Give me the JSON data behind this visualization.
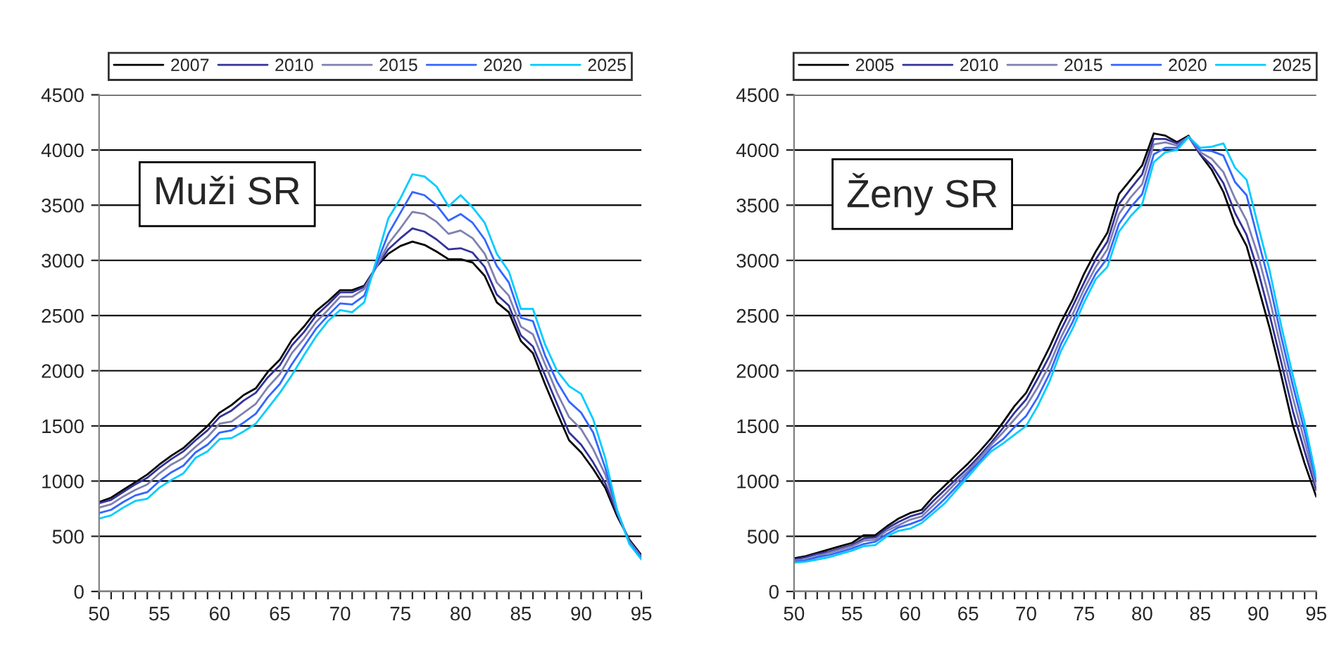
{
  "chart_data": [
    {
      "type": "line",
      "annotations": [
        "Muži SR"
      ],
      "x": [
        50,
        51,
        52,
        53,
        54,
        55,
        56,
        57,
        58,
        59,
        60,
        61,
        62,
        63,
        64,
        65,
        66,
        67,
        68,
        69,
        70,
        71,
        72,
        73,
        74,
        75,
        76,
        77,
        78,
        79,
        80,
        81,
        82,
        83,
        84,
        85,
        86,
        87,
        88,
        89,
        90,
        91,
        92,
        93,
        94,
        95
      ],
      "series": [
        {
          "name": "2007",
          "color": "#000000",
          "values": [
            810,
            850,
            920,
            990,
            1060,
            1150,
            1230,
            1300,
            1400,
            1500,
            1620,
            1690,
            1780,
            1840,
            1990,
            2100,
            2280,
            2400,
            2540,
            2630,
            2730,
            2730,
            2770,
            2940,
            3060,
            3130,
            3170,
            3140,
            3080,
            3010,
            3010,
            2980,
            2860,
            2620,
            2530,
            2270,
            2160,
            1880,
            1620,
            1370,
            1260,
            1110,
            940,
            680,
            470,
            330
          ]
        },
        {
          "name": "2010",
          "color": "#333399",
          "values": [
            800,
            830,
            900,
            970,
            1030,
            1120,
            1200,
            1270,
            1370,
            1460,
            1580,
            1640,
            1730,
            1800,
            1940,
            2050,
            2230,
            2350,
            2500,
            2600,
            2710,
            2710,
            2760,
            2940,
            3100,
            3200,
            3290,
            3260,
            3190,
            3100,
            3110,
            3070,
            2940,
            2690,
            2590,
            2320,
            2220,
            1960,
            1700,
            1440,
            1330,
            1170,
            980,
            700,
            460,
            320
          ]
        },
        {
          "name": "2015",
          "color": "#8080b0",
          "values": [
            760,
            790,
            860,
            920,
            970,
            1070,
            1150,
            1210,
            1310,
            1400,
            1520,
            1540,
            1620,
            1700,
            1850,
            1970,
            2160,
            2290,
            2440,
            2550,
            2670,
            2670,
            2740,
            2940,
            3150,
            3290,
            3440,
            3420,
            3350,
            3240,
            3270,
            3200,
            3060,
            2800,
            2680,
            2400,
            2330,
            2060,
            1800,
            1580,
            1470,
            1290,
            1060,
            720,
            450,
            310
          ]
        },
        {
          "name": "2020",
          "color": "#3366ff",
          "values": [
            710,
            740,
            810,
            870,
            900,
            1000,
            1080,
            1140,
            1260,
            1330,
            1440,
            1460,
            1530,
            1610,
            1760,
            1880,
            2060,
            2220,
            2380,
            2500,
            2610,
            2600,
            2680,
            2960,
            3240,
            3430,
            3620,
            3590,
            3500,
            3360,
            3420,
            3340,
            3190,
            2950,
            2800,
            2480,
            2450,
            2140,
            1900,
            1720,
            1620,
            1440,
            1120,
            730,
            440,
            300
          ]
        },
        {
          "name": "2025",
          "color": "#00ccff",
          "values": [
            660,
            690,
            760,
            820,
            840,
            940,
            1010,
            1070,
            1210,
            1270,
            1380,
            1390,
            1450,
            1520,
            1660,
            1800,
            1960,
            2140,
            2310,
            2450,
            2550,
            2530,
            2620,
            3000,
            3380,
            3560,
            3780,
            3760,
            3670,
            3490,
            3590,
            3480,
            3340,
            3060,
            2900,
            2560,
            2560,
            2240,
            2000,
            1860,
            1790,
            1560,
            1210,
            730,
            430,
            290
          ]
        }
      ],
      "xlim": [
        50,
        95
      ],
      "ylim": [
        0,
        4500
      ],
      "xticks": [
        50,
        {
          "value": 51,
          "label": null
        },
        {
          "value": 52,
          "label": null
        },
        {
          "value": 53,
          "label": null
        },
        {
          "value": 54,
          "label": null
        },
        55,
        {
          "value": 56,
          "label": null
        },
        {
          "value": 57,
          "label": null
        },
        {
          "value": 58,
          "label": null
        },
        {
          "value": 59,
          "label": null
        },
        60,
        {
          "value": 61,
          "label": null
        },
        {
          "value": 62,
          "label": null
        },
        {
          "value": 63,
          "label": null
        },
        {
          "value": 64,
          "label": null
        },
        65,
        {
          "value": 66,
          "label": null
        },
        {
          "value": 67,
          "label": null
        },
        {
          "value": 68,
          "label": null
        },
        {
          "value": 69,
          "label": null
        },
        70,
        {
          "value": 71,
          "label": null
        },
        {
          "value": 72,
          "label": null
        },
        {
          "value": 73,
          "label": null
        },
        {
          "value": 74,
          "label": null
        },
        75,
        {
          "value": 76,
          "label": null
        },
        {
          "value": 77,
          "label": null
        },
        {
          "value": 78,
          "label": null
        },
        {
          "value": 79,
          "label": null
        },
        80,
        {
          "value": 81,
          "label": null
        },
        {
          "value": 82,
          "label": null
        },
        {
          "value": 83,
          "label": null
        },
        {
          "value": 84,
          "label": null
        },
        85,
        {
          "value": 86,
          "label": null
        },
        {
          "value": 87,
          "label": null
        },
        {
          "value": 88,
          "label": null
        },
        {
          "value": 89,
          "label": null
        },
        90,
        {
          "value": 91,
          "label": null
        },
        {
          "value": 92,
          "label": null
        },
        {
          "value": 93,
          "label": null
        },
        {
          "value": 94,
          "label": null
        },
        95
      ],
      "yticks": [
        0,
        500,
        1000,
        1500,
        2000,
        2500,
        3000,
        3500,
        4000,
        4500
      ],
      "grid": "y",
      "legend": "top",
      "marker": "none",
      "line_style": "solid"
    },
    {
      "type": "line",
      "annotations": [
        "Ženy SR"
      ],
      "x": [
        50,
        51,
        52,
        53,
        54,
        55,
        56,
        57,
        58,
        59,
        60,
        61,
        62,
        63,
        64,
        65,
        66,
        67,
        68,
        69,
        70,
        71,
        72,
        73,
        74,
        75,
        76,
        77,
        78,
        79,
        80,
        81,
        82,
        83,
        84,
        85,
        86,
        87,
        88,
        89,
        90,
        91,
        92,
        93,
        94,
        95
      ],
      "series": [
        {
          "name": "2005",
          "color": "#000000",
          "values": [
            300,
            320,
            350,
            380,
            410,
            440,
            510,
            510,
            590,
            660,
            710,
            740,
            860,
            960,
            1060,
            1160,
            1270,
            1390,
            1530,
            1680,
            1800,
            2000,
            2210,
            2440,
            2640,
            2880,
            3080,
            3250,
            3600,
            3730,
            3860,
            4150,
            4130,
            4070,
            4130,
            3960,
            3820,
            3620,
            3330,
            3130,
            2760,
            2380,
            1950,
            1500,
            1160,
            860
          ]
        },
        {
          "name": "2010",
          "color": "#333399",
          "values": [
            290,
            310,
            340,
            360,
            390,
            420,
            480,
            490,
            570,
            630,
            680,
            710,
            820,
            920,
            1020,
            1120,
            1230,
            1350,
            1480,
            1620,
            1740,
            1930,
            2130,
            2370,
            2580,
            2800,
            3010,
            3170,
            3510,
            3650,
            3780,
            4100,
            4100,
            4060,
            4120,
            3960,
            3860,
            3700,
            3430,
            3230,
            2900,
            2500,
            2070,
            1630,
            1270,
            920
          ]
        },
        {
          "name": "2015",
          "color": "#8080b0",
          "values": [
            280,
            290,
            320,
            350,
            380,
            410,
            460,
            470,
            550,
            600,
            650,
            680,
            780,
            880,
            990,
            1090,
            1210,
            1330,
            1440,
            1560,
            1680,
            1850,
            2050,
            2300,
            2510,
            2740,
            2940,
            3100,
            3420,
            3570,
            3690,
            4050,
            4070,
            4040,
            4120,
            3980,
            3920,
            3800,
            3560,
            3360,
            3040,
            2640,
            2190,
            1750,
            1360,
            960
          ]
        },
        {
          "name": "2020",
          "color": "#3366ff",
          "values": [
            270,
            280,
            310,
            330,
            360,
            390,
            430,
            450,
            520,
            580,
            610,
            650,
            740,
            840,
            950,
            1070,
            1180,
            1300,
            1380,
            1490,
            1590,
            1760,
            1970,
            2240,
            2440,
            2680,
            2880,
            3020,
            3330,
            3480,
            3600,
            3960,
            4020,
            4020,
            4120,
            4000,
            3990,
            3950,
            3710,
            3590,
            3180,
            2780,
            2300,
            1860,
            1450,
            1000
          ]
        },
        {
          "name": "2025",
          "color": "#00ccff",
          "values": [
            260,
            270,
            290,
            310,
            340,
            370,
            410,
            420,
            500,
            550,
            570,
            620,
            710,
            800,
            920,
            1040,
            1160,
            1270,
            1340,
            1420,
            1500,
            1680,
            1900,
            2180,
            2380,
            2620,
            2830,
            2940,
            3260,
            3400,
            3510,
            3890,
            3980,
            4000,
            4120,
            4020,
            4030,
            4060,
            3840,
            3730,
            3310,
            2900,
            2400,
            1950,
            1530,
            1030
          ]
        }
      ],
      "xlim": [
        50,
        95
      ],
      "ylim": [
        0,
        4500
      ],
      "xticks": [
        50,
        {
          "value": 51,
          "label": null
        },
        {
          "value": 52,
          "label": null
        },
        {
          "value": 53,
          "label": null
        },
        {
          "value": 54,
          "label": null
        },
        55,
        {
          "value": 56,
          "label": null
        },
        {
          "value": 57,
          "label": null
        },
        {
          "value": 58,
          "label": null
        },
        {
          "value": 59,
          "label": null
        },
        60,
        {
          "value": 61,
          "label": null
        },
        {
          "value": 62,
          "label": null
        },
        {
          "value": 63,
          "label": null
        },
        {
          "value": 64,
          "label": null
        },
        65,
        {
          "value": 66,
          "label": null
        },
        {
          "value": 67,
          "label": null
        },
        {
          "value": 68,
          "label": null
        },
        {
          "value": 69,
          "label": null
        },
        70,
        {
          "value": 71,
          "label": null
        },
        {
          "value": 72,
          "label": null
        },
        {
          "value": 73,
          "label": null
        },
        {
          "value": 74,
          "label": null
        },
        75,
        {
          "value": 76,
          "label": null
        },
        {
          "value": 77,
          "label": null
        },
        {
          "value": 78,
          "label": null
        },
        {
          "value": 79,
          "label": null
        },
        80,
        {
          "value": 81,
          "label": null
        },
        {
          "value": 82,
          "label": null
        },
        {
          "value": 83,
          "label": null
        },
        {
          "value": 84,
          "label": null
        },
        85,
        {
          "value": 86,
          "label": null
        },
        {
          "value": 87,
          "label": null
        },
        {
          "value": 88,
          "label": null
        },
        {
          "value": 89,
          "label": null
        },
        90,
        {
          "value": 91,
          "label": null
        },
        {
          "value": 92,
          "label": null
        },
        {
          "value": 93,
          "label": null
        },
        {
          "value": 94,
          "label": null
        },
        95
      ],
      "yticks": [
        0,
        500,
        1000,
        1500,
        2000,
        2500,
        3000,
        3500,
        4000,
        4500
      ],
      "grid": "y",
      "legend": "top",
      "marker": "none",
      "line_style": "solid"
    }
  ]
}
